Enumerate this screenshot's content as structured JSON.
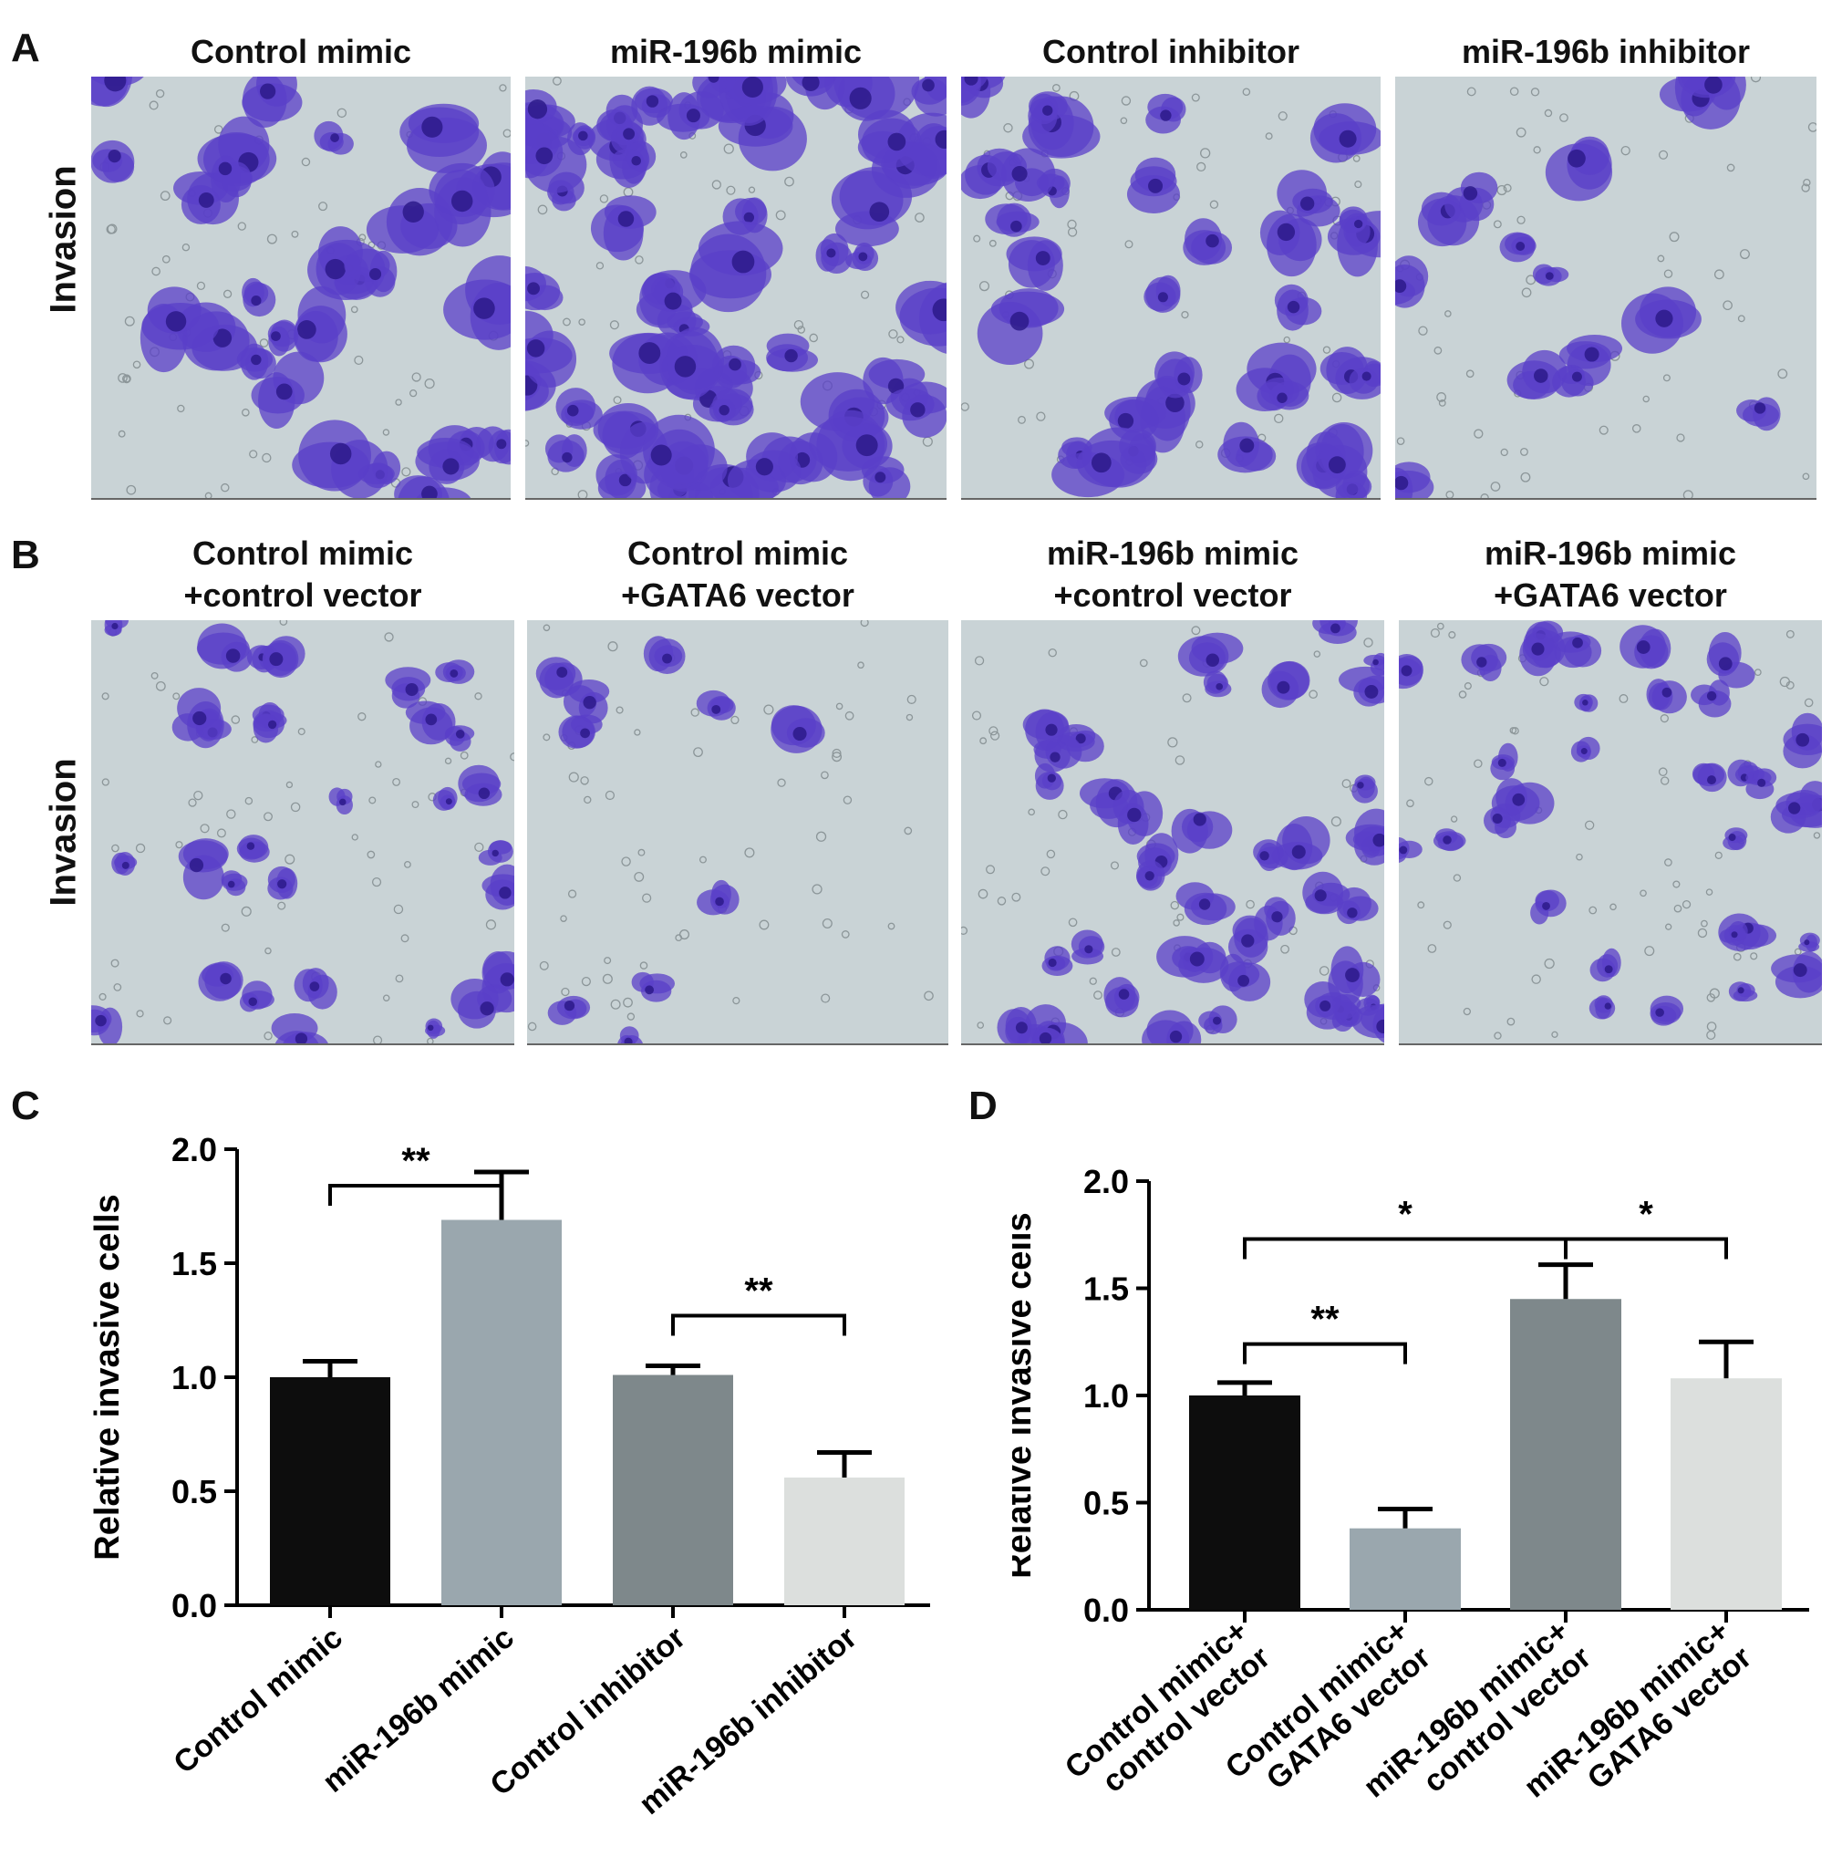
{
  "panels": {
    "A": {
      "label": "A",
      "row_label": "Invasion",
      "titles": [
        [
          "Control mimic"
        ],
        [
          "miR-196b mimic"
        ],
        [
          "Control inhibitor"
        ],
        [
          "miR-196b inhibitor"
        ]
      ]
    },
    "B": {
      "label": "B",
      "row_label": "Invasion",
      "titles": [
        [
          "Control mimic",
          "+control vector"
        ],
        [
          "Control mimic",
          "+GATA6 vector"
        ],
        [
          "miR-196b mimic",
          "+control vector"
        ],
        [
          "miR-196b mimic",
          "+GATA6 vector"
        ]
      ]
    },
    "C": {
      "label": "C"
    },
    "D": {
      "label": "D"
    }
  },
  "colors": {
    "stain": "#5a3fc8",
    "stain_dark": "#2d1a8a",
    "background": "#c9d3d6",
    "bar_black": "#0d0d0d",
    "bar_gray_blue": "#9aa7ae",
    "bar_dark_gray": "#7e888b",
    "bar_light": "#dcdfdd"
  },
  "chart_data": [
    {
      "type": "bar",
      "panel": "C",
      "categories": [
        "Control mimic",
        "miR-196b mimic",
        "Control inhibitor",
        "miR-196b inhibitor"
      ],
      "values": [
        1.0,
        1.69,
        1.01,
        0.56
      ],
      "errors": [
        0.07,
        0.21,
        0.04,
        0.11
      ],
      "colors": [
        "#0d0d0d",
        "#9aa7ae",
        "#7e888b",
        "#dcdfdd"
      ],
      "ylabel": "Relative invasive cells",
      "ylim": [
        0,
        2.0
      ],
      "yticks": [
        "0.0",
        "0.5",
        "1.0",
        "1.5",
        "2.0"
      ],
      "significance": [
        {
          "from": 0,
          "to": 1,
          "label": "**"
        },
        {
          "from": 2,
          "to": 3,
          "label": "**"
        }
      ]
    },
    {
      "type": "bar",
      "panel": "D",
      "categories": [
        [
          "Control mimic+",
          "control vector"
        ],
        [
          "Control mimic+",
          "GATA6 vector"
        ],
        [
          "miR-196b mimic+",
          "control vector"
        ],
        [
          "miR-196b mimic+",
          "GATA6 vector"
        ]
      ],
      "values": [
        1.0,
        0.38,
        1.45,
        1.08
      ],
      "errors": [
        0.06,
        0.09,
        0.16,
        0.17
      ],
      "colors": [
        "#0d0d0d",
        "#9aa7ae",
        "#7e888b",
        "#dcdfdd"
      ],
      "ylabel": "Relative invasive cells",
      "ylim": [
        0,
        2.0
      ],
      "yticks": [
        "0.0",
        "0.5",
        "1.0",
        "1.5",
        "2.0"
      ],
      "significance": [
        {
          "from": 0,
          "to": 2,
          "label": "*"
        },
        {
          "from": 2,
          "to": 3,
          "label": "*"
        },
        {
          "from": 0,
          "to": 1,
          "label": "**"
        }
      ]
    }
  ]
}
